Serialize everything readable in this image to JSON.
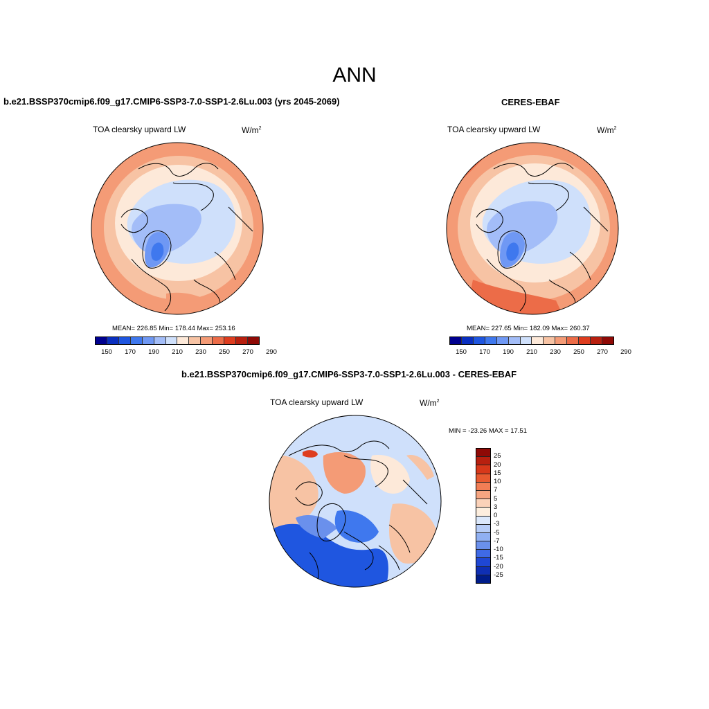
{
  "title": "ANN",
  "panels": {
    "model": {
      "subtitle": "b.e21.BSSP370cmip6.f09_g17.CMIP6-SSP3-7.0-SSP1-2.6Lu.003 (yrs 2045-2069)",
      "label": "TOA clearsky upward LW",
      "units": "W/m",
      "units_sup": "2",
      "stats": "MEAN= 226.85  Min= 178.44  Max= 253.16"
    },
    "obs": {
      "subtitle": "CERES-EBAF",
      "label": "TOA clearsky upward LW",
      "units": "W/m",
      "units_sup": "2",
      "stats": "MEAN= 227.65  Min= 182.09  Max= 260.37"
    },
    "diff": {
      "subtitle": "b.e21.BSSP370cmip6.f09_g17.CMIP6-SSP3-7.0-SSP1-2.6Lu.003 - CERES-EBAF",
      "label": "TOA clearsky upward LW",
      "units": "W/m",
      "units_sup": "2",
      "stats": "MIN = -23.26 MAX =  17.51"
    }
  },
  "colorbar_abs": {
    "colors": [
      "#00008f",
      "#0a2fc0",
      "#1f56e0",
      "#3f78ee",
      "#6f98f4",
      "#a3bdf8",
      "#cfe0fb",
      "#fde9d9",
      "#f7c3a4",
      "#f49b76",
      "#ec6c48",
      "#de3d1f",
      "#b8200f",
      "#8f0a06"
    ],
    "ticks": [
      "150",
      "170",
      "190",
      "210",
      "230",
      "250",
      "270",
      "290"
    ]
  },
  "colorbar_diff": {
    "colors": [
      "#8f0a06",
      "#b8200f",
      "#d8381a",
      "#e85a30",
      "#f27e55",
      "#f6a581",
      "#fbd2b9",
      "#fdeede",
      "#dbe8fb",
      "#b7cdf7",
      "#90b0f2",
      "#6a90ec",
      "#3f6ae6",
      "#1f47d4",
      "#0f2fb4",
      "#001c8a"
    ],
    "ticks": [
      "25",
      "20",
      "15",
      "10",
      "7",
      "5",
      "3",
      "0",
      "-3",
      "-5",
      "-7",
      "-10",
      "-15",
      "-20",
      "-25"
    ]
  },
  "map_colors": {
    "warm_outer": "#f49b76",
    "warm_mid": "#f7c3a4",
    "warm_light": "#fde9d9",
    "cool_light": "#cfe0fb",
    "cool_mid": "#a3bdf8",
    "cool_deep": "#3f78ee",
    "diff_warm": "#f49b76",
    "diff_cool": "#1f56e0"
  }
}
